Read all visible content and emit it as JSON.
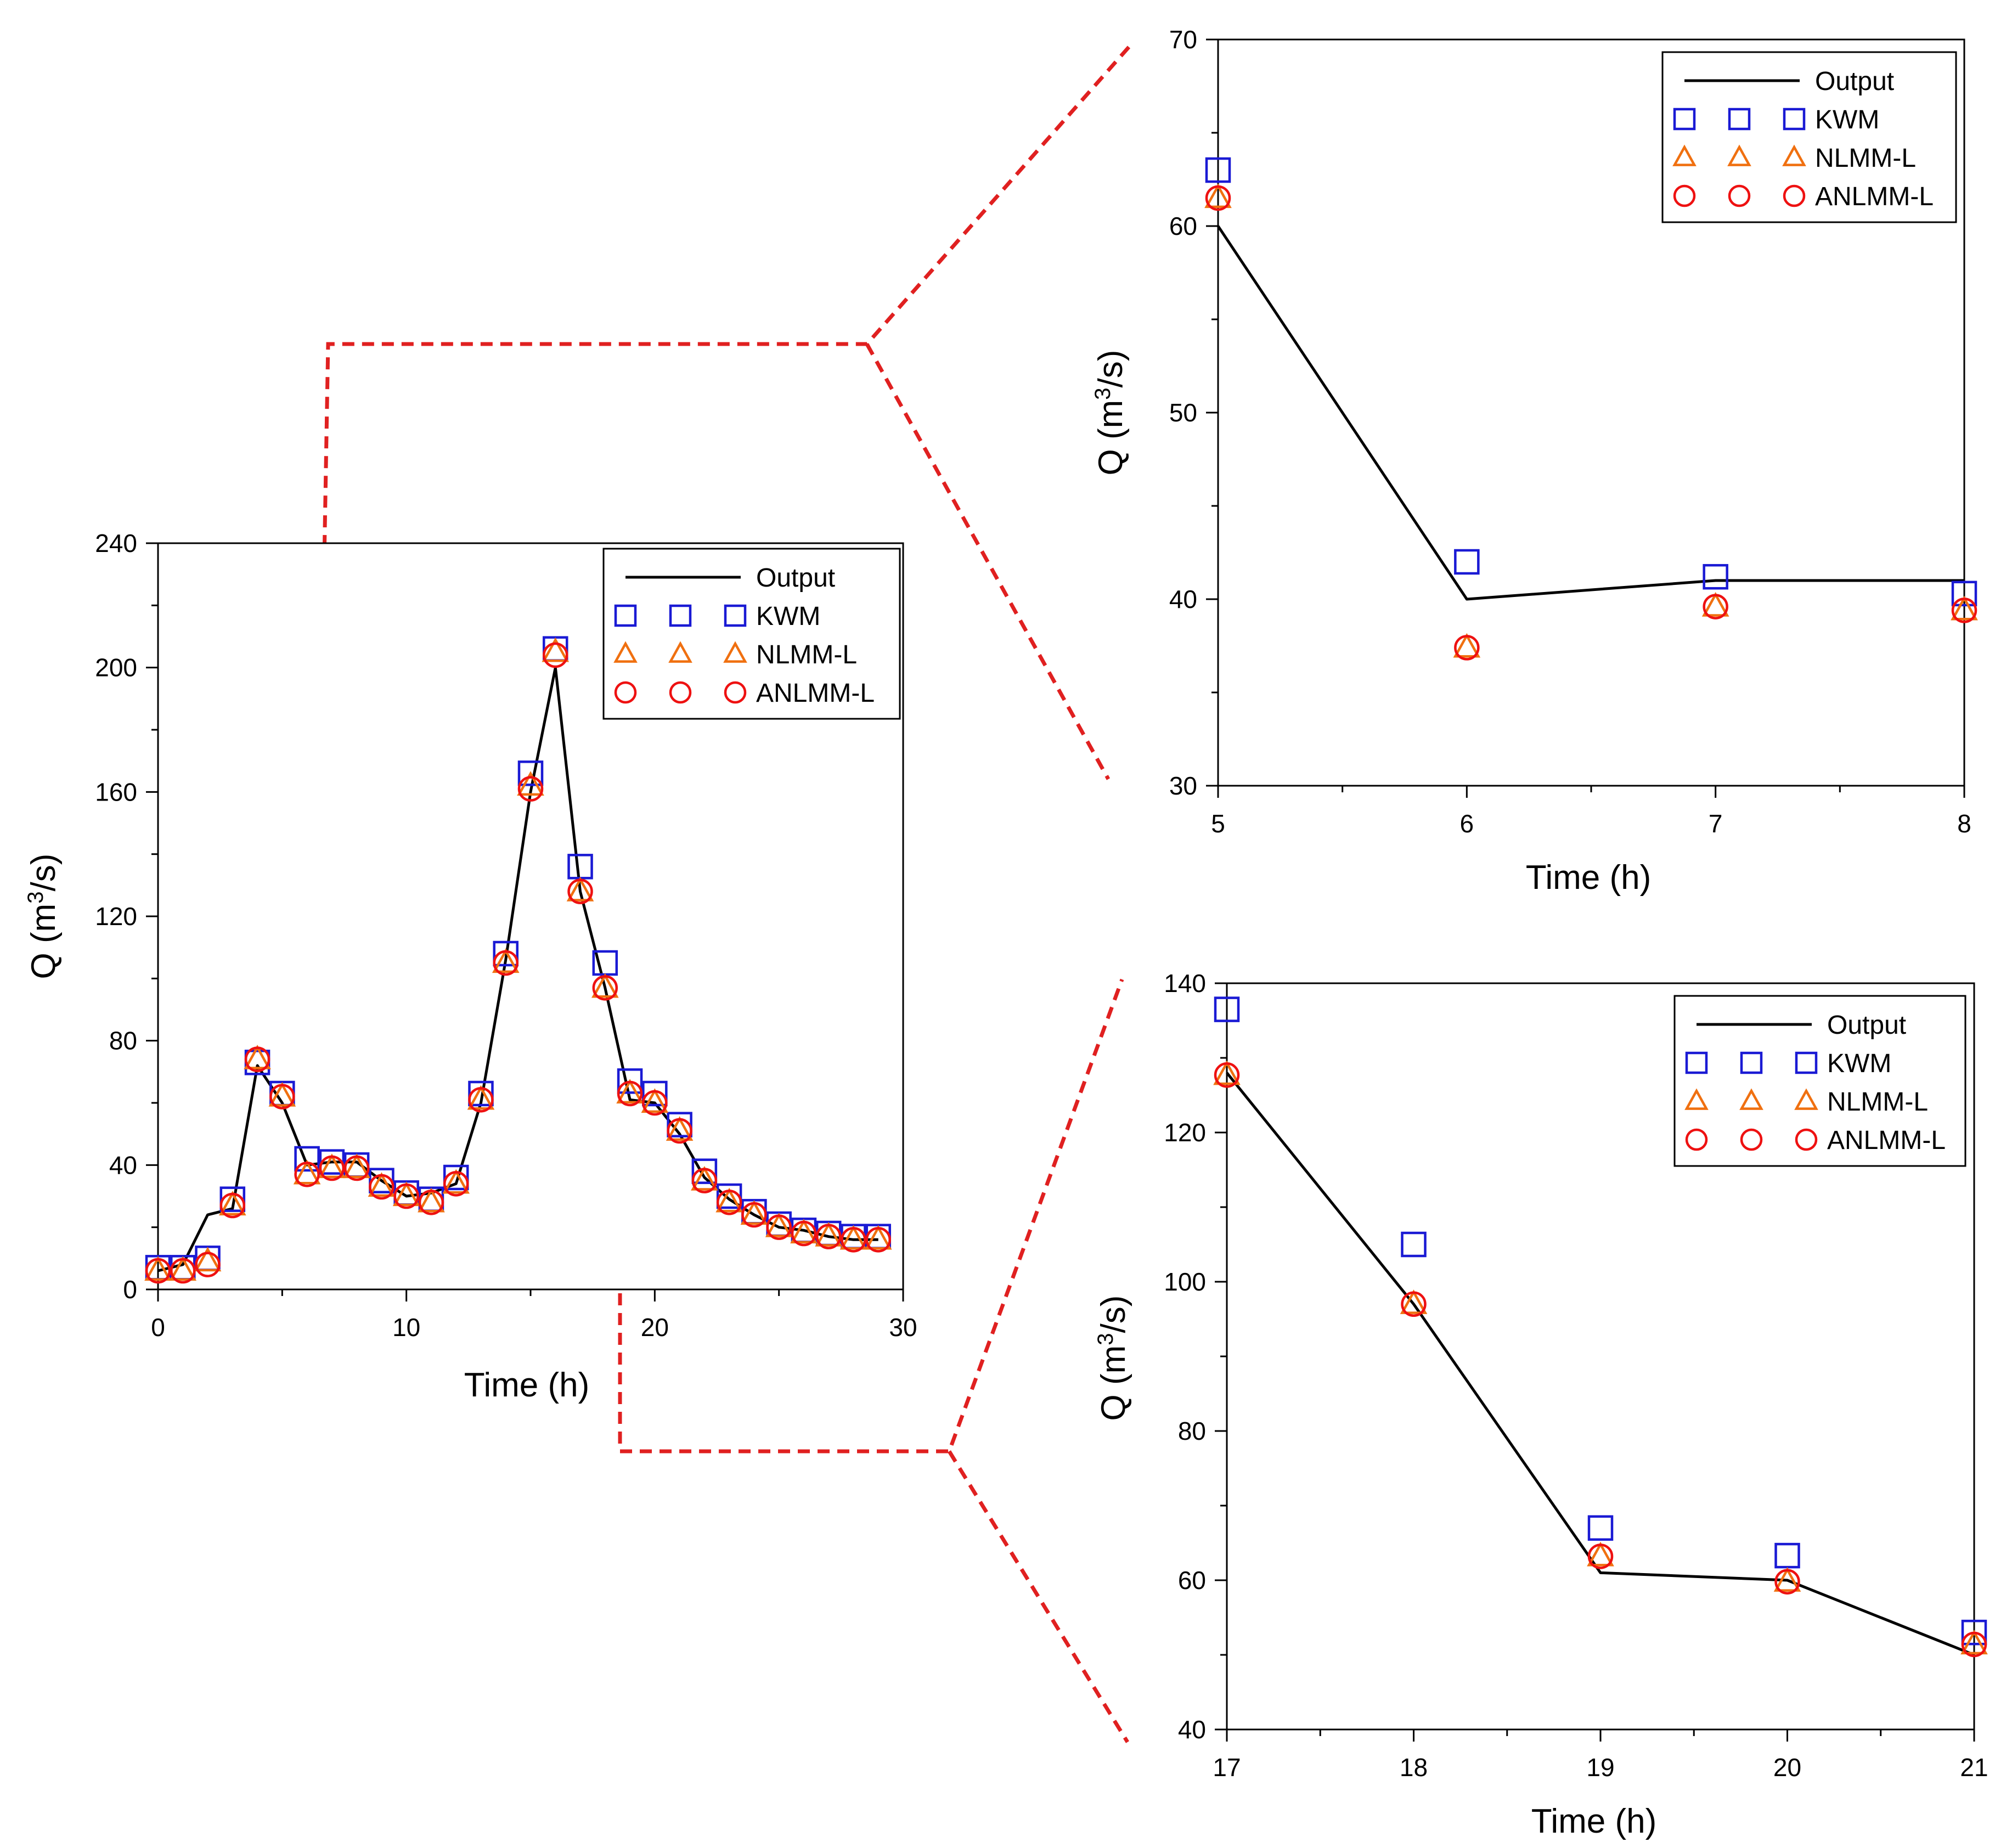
{
  "colors": {
    "output": "#000000",
    "kwm": "#1a1ad4",
    "nlmm": "#f07010",
    "anlmm": "#ee1111",
    "callout": "#e02020"
  },
  "chart_data": [
    {
      "type": "line",
      "id": "main",
      "xlabel": "Time (h)",
      "ylabel_prefix": "Q (m",
      "ylabel_sup": "3",
      "ylabel_suffix": "/s)",
      "xlim": [
        0,
        30
      ],
      "ylim": [
        0,
        240
      ],
      "xticks": [
        0,
        10,
        20,
        30
      ],
      "xtick_labels": [
        "0",
        "10",
        "20",
        "30"
      ],
      "yticks": [
        0,
        40,
        80,
        120,
        160,
        200,
        240
      ],
      "ytick_labels": [
        "0",
        "40",
        "80",
        "120",
        "160",
        "200",
        "240"
      ],
      "legend_position": "top-right",
      "x": [
        0,
        1,
        2,
        3,
        4,
        5,
        6,
        7,
        8,
        9,
        10,
        11,
        12,
        13,
        14,
        15,
        16,
        17,
        18,
        19,
        20,
        21,
        22,
        23,
        24,
        25,
        26,
        27,
        28,
        29
      ],
      "series": [
        {
          "name": "Output",
          "style": "line",
          "values": [
            6,
            8,
            24,
            26,
            72,
            60,
            40,
            41,
            41,
            35,
            30,
            31,
            34,
            60,
            106,
            160,
            200,
            128,
            97,
            61,
            60,
            50,
            36,
            29,
            24,
            20,
            19,
            17,
            16,
            16
          ]
        },
        {
          "name": "KWM",
          "style": "square",
          "values": [
            7,
            7,
            10,
            29,
            73,
            63,
            42,
            41,
            40,
            35,
            31,
            29,
            36,
            63,
            108,
            166,
            206,
            136,
            105,
            67,
            63,
            53,
            38,
            30,
            25,
            21,
            19,
            18,
            17,
            17
          ]
        },
        {
          "name": "NLMM-L",
          "style": "triangle",
          "values": [
            6,
            6,
            9,
            27,
            74,
            62,
            37,
            39,
            39,
            33,
            30,
            28,
            34,
            61,
            105,
            162,
            205,
            128,
            97,
            63,
            60,
            51,
            35,
            28,
            24,
            20,
            18,
            17,
            16,
            16
          ]
        },
        {
          "name": "ANLMM-L",
          "style": "circle",
          "values": [
            6,
            6,
            8,
            27,
            74,
            62,
            37,
            39,
            39,
            33,
            30,
            28,
            34,
            61,
            105,
            161,
            204,
            128,
            97,
            63,
            60,
            51,
            35,
            28,
            24,
            20,
            18,
            17,
            16,
            16
          ]
        }
      ],
      "legend": [
        "Output",
        "KWM",
        "NLMM-L",
        "ANLMM-L"
      ]
    },
    {
      "type": "line",
      "id": "zoom-top",
      "xlabel": "Time (h)",
      "ylabel_prefix": "Q (m",
      "ylabel_sup": "3",
      "ylabel_suffix": "/s)",
      "xlim": [
        5,
        8
      ],
      "ylim": [
        30,
        70
      ],
      "xticks": [
        5,
        6,
        7,
        8
      ],
      "xtick_labels": [
        "5",
        "6",
        "7",
        "8"
      ],
      "yticks": [
        30,
        40,
        50,
        60,
        70
      ],
      "ytick_labels": [
        "30",
        "40",
        "50",
        "60",
        "70"
      ],
      "legend_position": "top-right",
      "x": [
        5,
        6,
        7,
        8
      ],
      "series": [
        {
          "name": "Output",
          "style": "line",
          "values": [
            60,
            40,
            41,
            41
          ]
        },
        {
          "name": "KWM",
          "style": "square",
          "values": [
            63,
            42,
            41.2,
            40.3
          ]
        },
        {
          "name": "NLMM-L",
          "style": "triangle",
          "values": [
            61.5,
            37.4,
            39.6,
            39.4
          ]
        },
        {
          "name": "ANLMM-L",
          "style": "circle",
          "values": [
            61.5,
            37.4,
            39.6,
            39.4
          ]
        }
      ],
      "legend": [
        "Output",
        "KWM",
        "NLMM-L",
        "ANLMM-L"
      ]
    },
    {
      "type": "line",
      "id": "zoom-bottom",
      "xlabel": "Time (h)",
      "ylabel_prefix": "Q (m",
      "ylabel_sup": "3",
      "ylabel_suffix": "/s)",
      "xlim": [
        17,
        21
      ],
      "ylim": [
        40,
        140
      ],
      "xticks": [
        17,
        18,
        19,
        20,
        21
      ],
      "xtick_labels": [
        "17",
        "18",
        "19",
        "20",
        "21"
      ],
      "yticks": [
        40,
        60,
        80,
        100,
        120,
        140
      ],
      "ytick_labels": [
        "40",
        "60",
        "80",
        "100",
        "120",
        "140"
      ],
      "legend_position": "top-right",
      "x": [
        17,
        18,
        19,
        20,
        21
      ],
      "series": [
        {
          "name": "Output",
          "style": "line",
          "values": [
            128,
            97,
            61,
            60,
            50
          ]
        },
        {
          "name": "KWM",
          "style": "square",
          "values": [
            136.5,
            105,
            67,
            63.3,
            53
          ]
        },
        {
          "name": "NLMM-L",
          "style": "triangle",
          "values": [
            127.7,
            97,
            63.2,
            59.8,
            51.4
          ]
        },
        {
          "name": "ANLMM-L",
          "style": "circle",
          "values": [
            127.7,
            97,
            63.2,
            59.8,
            51.4
          ]
        }
      ],
      "legend": [
        "Output",
        "KWM",
        "NLMM-L",
        "ANLMM-L"
      ]
    }
  ]
}
